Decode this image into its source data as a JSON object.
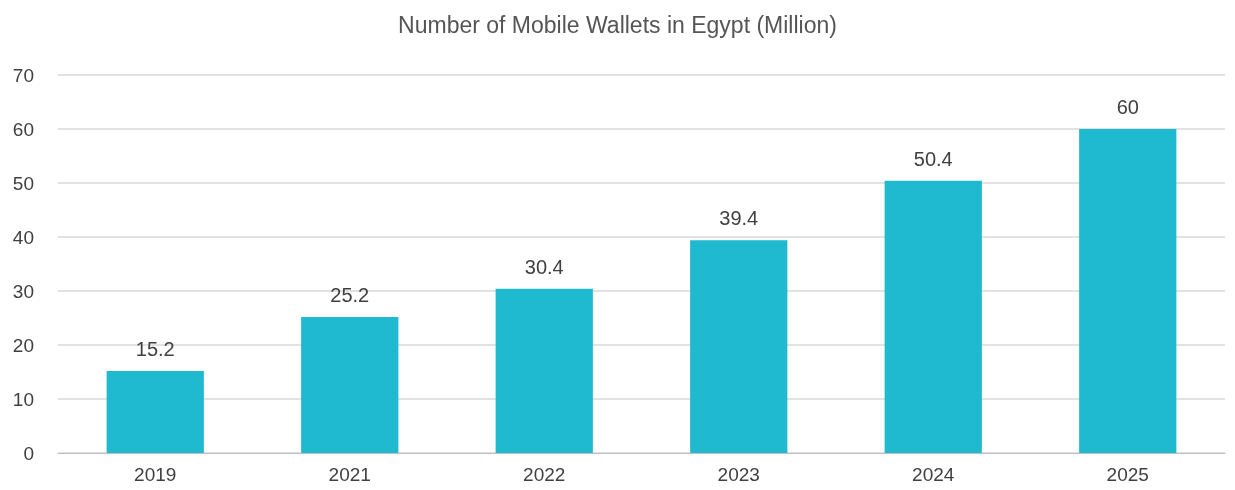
{
  "chart_data": {
    "type": "bar",
    "title": "Number of Mobile Wallets in Egypt (Million)",
    "categories": [
      "2019",
      "2021",
      "2022",
      "2023",
      "2024",
      "2025"
    ],
    "values": [
      15.2,
      25.2,
      30.4,
      39.4,
      50.4,
      60
    ],
    "color": "#1fbad0",
    "ylim": [
      0,
      70
    ],
    "yticks": [
      0,
      10,
      20,
      30,
      40,
      50,
      60,
      70
    ],
    "grid": "y",
    "data_labels": true
  }
}
